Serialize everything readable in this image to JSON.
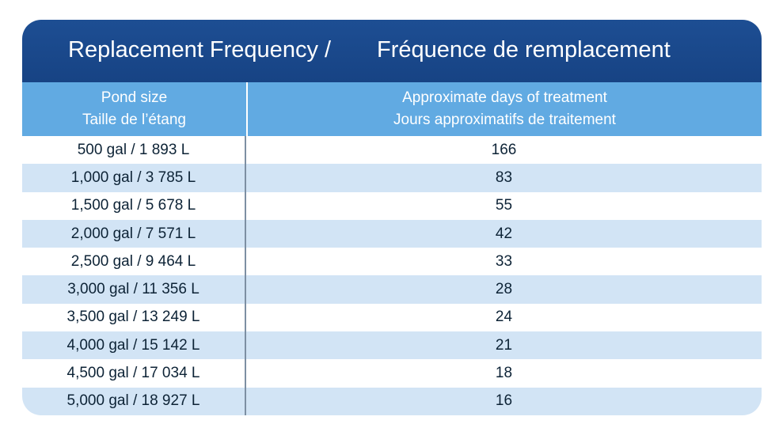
{
  "title": {
    "english": "Replacement Frequency /",
    "french": "Fréquence de remplacement"
  },
  "columns": {
    "pond_size": {
      "english": "Pond size",
      "french": "Taille de l’étang"
    },
    "days": {
      "english": "Approximate days of treatment",
      "french": "Jours approximatifs de traitement"
    }
  },
  "rows": [
    {
      "pond_size": "500 gal / 1 893 L",
      "days": "166"
    },
    {
      "pond_size": "1,000 gal / 3 785 L",
      "days": "83"
    },
    {
      "pond_size": "1,500 gal / 5 678 L",
      "days": "55"
    },
    {
      "pond_size": "2,000 gal / 7 571 L",
      "days": "42"
    },
    {
      "pond_size": "2,500 gal / 9 464 L",
      "days": "33"
    },
    {
      "pond_size": "3,000 gal / 11 356 L",
      "days": "28"
    },
    {
      "pond_size": "3,500 gal / 13 249 L",
      "days": "24"
    },
    {
      "pond_size": "4,000 gal / 15 142 L",
      "days": "21"
    },
    {
      "pond_size": "4,500 gal / 17 034 L",
      "days": "18"
    },
    {
      "pond_size": "5,000 gal / 18 927 L",
      "days": "16"
    }
  ],
  "colors": {
    "title_background": "#1a4a8d",
    "header_background": "#61aae2",
    "alternate_row": "#d2e4f5"
  }
}
